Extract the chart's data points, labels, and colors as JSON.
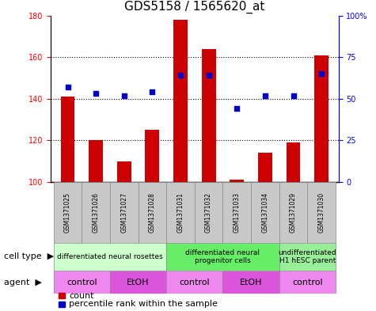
{
  "title": "GDS5158 / 1565620_at",
  "samples": [
    "GSM1371025",
    "GSM1371026",
    "GSM1371027",
    "GSM1371028",
    "GSM1371031",
    "GSM1371032",
    "GSM1371033",
    "GSM1371034",
    "GSM1371029",
    "GSM1371030"
  ],
  "counts": [
    141,
    120,
    110,
    125,
    178,
    164,
    101,
    114,
    119,
    161
  ],
  "percentiles": [
    57,
    53,
    52,
    54,
    64,
    64,
    44,
    52,
    52,
    65
  ],
  "ylim_left": [
    100,
    180
  ],
  "yticks_left": [
    100,
    120,
    140,
    160,
    180
  ],
  "ylim_right": [
    0,
    100
  ],
  "yticks_right": [
    0,
    25,
    50,
    75,
    100
  ],
  "ytick_labels_right": [
    "0",
    "25",
    "50",
    "75",
    "100%"
  ],
  "bar_color": "#cc0000",
  "dot_color": "#0000cc",
  "bar_width": 0.5,
  "cell_type_groups": [
    {
      "label": "differentiated neural rosettes",
      "start": 0,
      "end": 3,
      "color": "#ccffcc"
    },
    {
      "label": "differentiated neural\nprogenitor cells",
      "start": 4,
      "end": 7,
      "color": "#66ee66"
    },
    {
      "label": "undifferentiated\nH1 hESC parent",
      "start": 8,
      "end": 9,
      "color": "#99ee99"
    }
  ],
  "agent_groups": [
    {
      "label": "control",
      "start": 0,
      "end": 1,
      "color": "#ee88ee"
    },
    {
      "label": "EtOH",
      "start": 2,
      "end": 3,
      "color": "#dd55dd"
    },
    {
      "label": "control",
      "start": 4,
      "end": 5,
      "color": "#ee88ee"
    },
    {
      "label": "EtOH",
      "start": 6,
      "end": 7,
      "color": "#dd55dd"
    },
    {
      "label": "control",
      "start": 8,
      "end": 9,
      "color": "#ee88ee"
    }
  ],
  "cell_type_label": "cell type",
  "agent_label": "agent",
  "legend_count_label": "count",
  "legend_percentile_label": "percentile rank within the sample",
  "title_fontsize": 11,
  "tick_fontsize": 7,
  "label_fontsize": 8,
  "sample_fontsize": 5.5,
  "table_fontsize": 6.5,
  "agent_fontsize": 8
}
